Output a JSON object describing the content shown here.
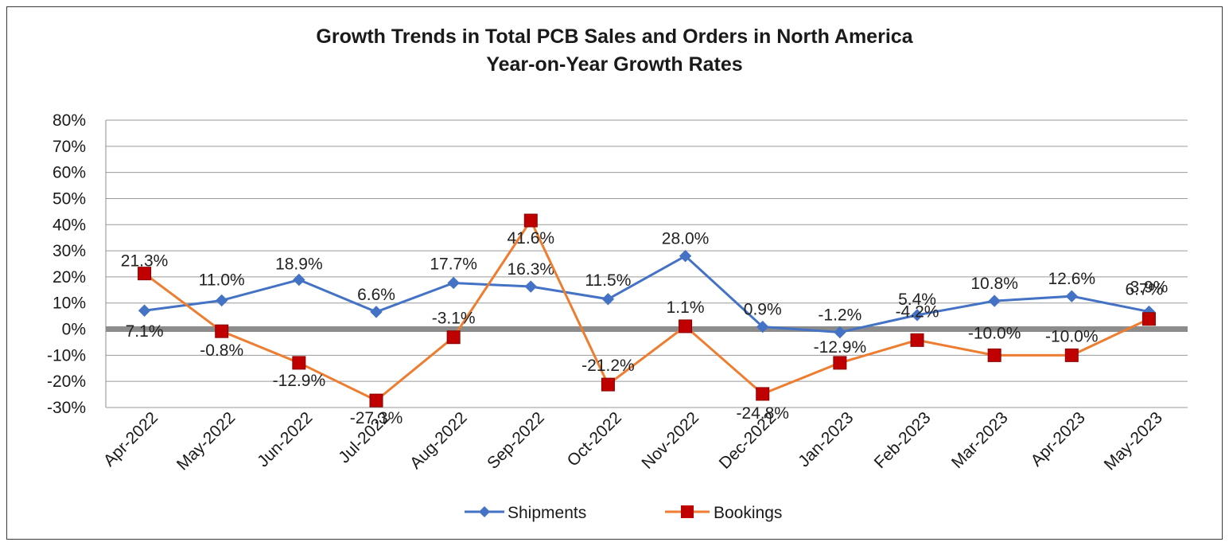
{
  "chart_data": {
    "type": "line",
    "title": "Growth Trends in Total PCB Sales and Orders in North America",
    "subtitle": "Year-on-Year Growth Rates",
    "categories": [
      "Apr-2022",
      "May-2022",
      "Jun-2022",
      "Jul-2022",
      "Aug-2022",
      "Sep-2022",
      "Oct-2022",
      "Nov-2022",
      "Dec-2022",
      "Jan-2023",
      "Feb-2023",
      "Mar-2023",
      "Apr-2023",
      "May-2023"
    ],
    "y_ticks": [
      "80%",
      "70%",
      "60%",
      "50%",
      "40%",
      "30%",
      "20%",
      "10%",
      "0%",
      "-10%",
      "-20%",
      "-30%"
    ],
    "ylim": [
      -30,
      80
    ],
    "grid": true,
    "legend_position": "bottom",
    "series": [
      {
        "name": "Shipments",
        "color": "#4472C4",
        "marker": "diamond",
        "values": [
          7.1,
          11.0,
          18.9,
          6.6,
          17.7,
          16.3,
          11.5,
          28.0,
          0.9,
          -1.2,
          5.4,
          10.8,
          12.6,
          6.7
        ],
        "labels": [
          "7.1%",
          "11.0%",
          "18.9%",
          "6.6%",
          "17.7%",
          "16.3%",
          "11.5%",
          "28.0%",
          "0.9%",
          "-1.2%",
          "5.4%",
          "10.8%",
          "12.6%",
          "6.7%"
        ]
      },
      {
        "name": "Bookings",
        "color": "#ED7D31",
        "marker_color": "#C00000",
        "marker": "square",
        "values": [
          21.3,
          -0.8,
          -12.9,
          -27.3,
          -3.1,
          41.6,
          -21.2,
          1.1,
          -24.8,
          -12.9,
          -4.2,
          -10.0,
          -10.0,
          3.9
        ],
        "labels": [
          "21.3%",
          "-0.8%",
          "-12.9%",
          "-27.3%",
          "-3.1%",
          "41.6%",
          "-21.2%",
          "1.1%",
          "-24.8%",
          "-12.9%",
          "-4.2%",
          "-10.0%",
          "-10.0%",
          "3.9%"
        ]
      }
    ]
  }
}
